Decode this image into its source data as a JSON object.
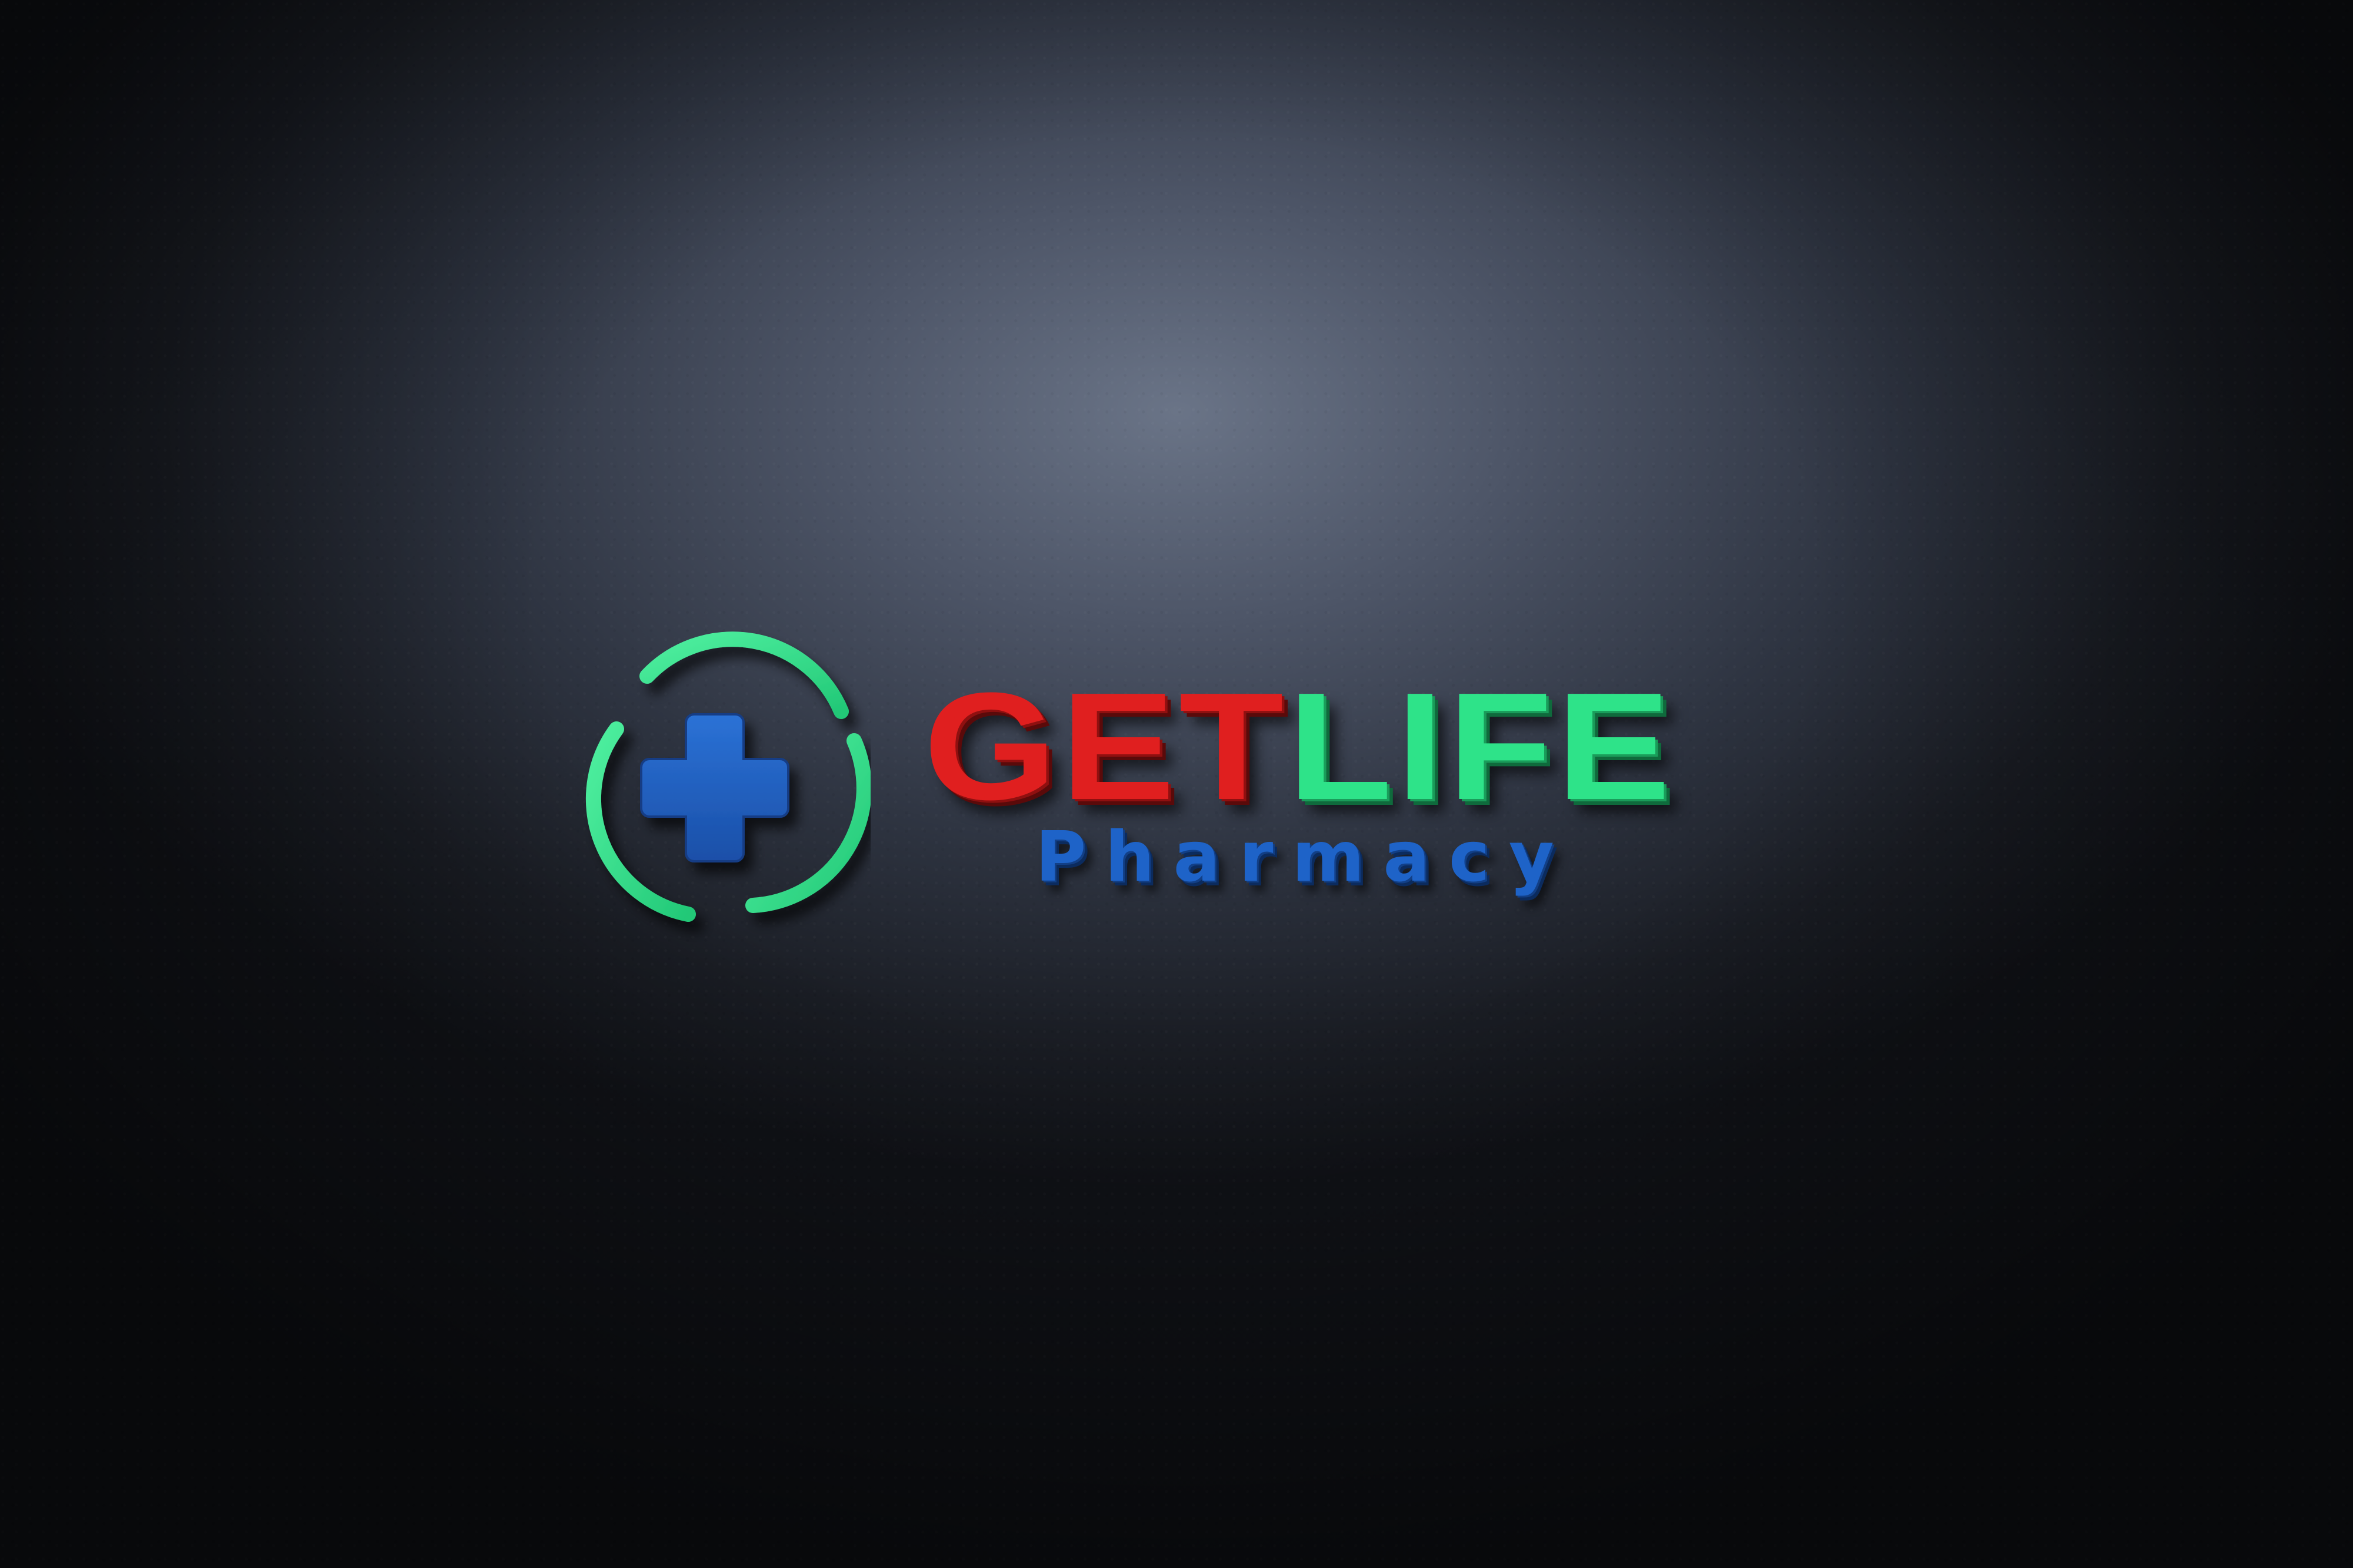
{
  "logo": {
    "word1": "GET",
    "word2": "LIFE",
    "tagline": "Pharmacy",
    "icon": "medical-cross-icon",
    "colors": {
      "get": "#e01f1f",
      "life": "#2ee389",
      "tagline": "#1e63c8",
      "cross": "#1f5fc0",
      "ring": "#37e48c",
      "wall": "#3a4150"
    }
  }
}
